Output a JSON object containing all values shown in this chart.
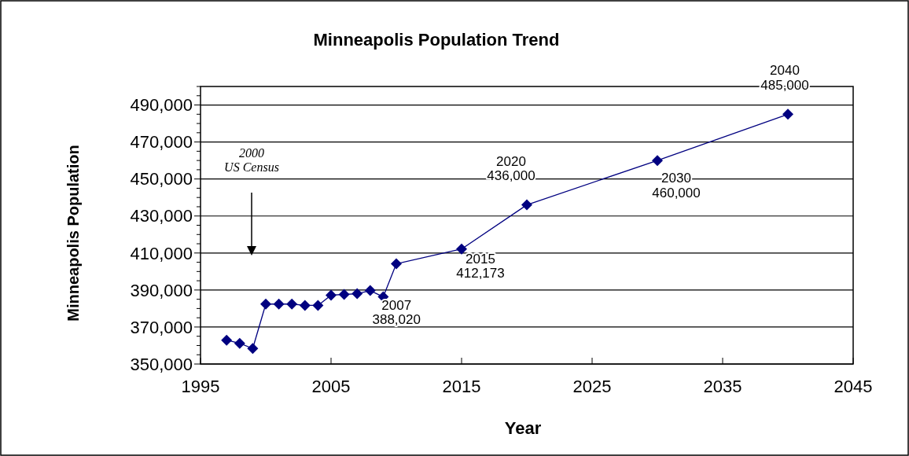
{
  "chart_data": {
    "type": "line",
    "title": "Minneapolis Population Trend",
    "xlabel": "Year",
    "ylabel": "Minneapolis Population",
    "x": [
      1997,
      1998,
      1999,
      2000,
      2001,
      2002,
      2003,
      2004,
      2005,
      2006,
      2007,
      2008,
      2009,
      2010,
      2015,
      2020,
      2030,
      2040
    ],
    "series": [
      {
        "color": "#000080",
        "values": [
          362900,
          361200,
          358400,
          382400,
          382400,
          382400,
          381700,
          381700,
          387200,
          387600,
          388020,
          389700,
          386300,
          404200,
          412173,
          436000,
          460000,
          485000
        ]
      }
    ],
    "xlim": [
      1995,
      2045
    ],
    "xticks": [
      1995,
      2005,
      2015,
      2025,
      2035,
      2045
    ],
    "ylim": [
      350000,
      500000
    ],
    "yticks": [
      {
        "value": 350000,
        "label": "350,000"
      },
      {
        "value": 355000,
        "label": null
      },
      {
        "value": 360000,
        "label": null
      },
      {
        "value": 365000,
        "label": null
      },
      {
        "value": 370000,
        "label": "370,000"
      },
      {
        "value": 375000,
        "label": null
      },
      {
        "value": 380000,
        "label": null
      },
      {
        "value": 385000,
        "label": null
      },
      {
        "value": 390000,
        "label": "390,000"
      },
      {
        "value": 395000,
        "label": null
      },
      {
        "value": 400000,
        "label": null
      },
      {
        "value": 405000,
        "label": null
      },
      {
        "value": 410000,
        "label": "410,000"
      },
      {
        "value": 415000,
        "label": null
      },
      {
        "value": 420000,
        "label": null
      },
      {
        "value": 425000,
        "label": null
      },
      {
        "value": 430000,
        "label": "430,000"
      },
      {
        "value": 435000,
        "label": null
      },
      {
        "value": 440000,
        "label": null
      },
      {
        "value": 445000,
        "label": null
      },
      {
        "value": 450000,
        "label": "450,000"
      },
      {
        "value": 455000,
        "label": null
      },
      {
        "value": 460000,
        "label": null
      },
      {
        "value": 465000,
        "label": null
      },
      {
        "value": 470000,
        "label": "470,000"
      },
      {
        "value": 475000,
        "label": null
      },
      {
        "value": 480000,
        "label": null
      },
      {
        "value": 485000,
        "label": null
      },
      {
        "value": 490000,
        "label": "490,000"
      },
      {
        "value": 495000,
        "label": null
      },
      {
        "value": 500000,
        "label": null
      }
    ],
    "grid": "y",
    "marker": "diamond",
    "line_style": "solid",
    "annotations": [
      "2000\nUS Census",
      {
        "text": "2007\n388,020",
        "x": 2007,
        "y": 388020
      },
      {
        "text": "2015\n412,173",
        "x": 2015,
        "y": 412173
      },
      {
        "text": "2020\n436,000",
        "x": 2020,
        "y": 436000
      },
      {
        "text": "2030\n460,000",
        "x": 2030,
        "y": 460000
      },
      {
        "text": "2040\n485,000",
        "x": 2040,
        "y": 485000
      }
    ]
  }
}
